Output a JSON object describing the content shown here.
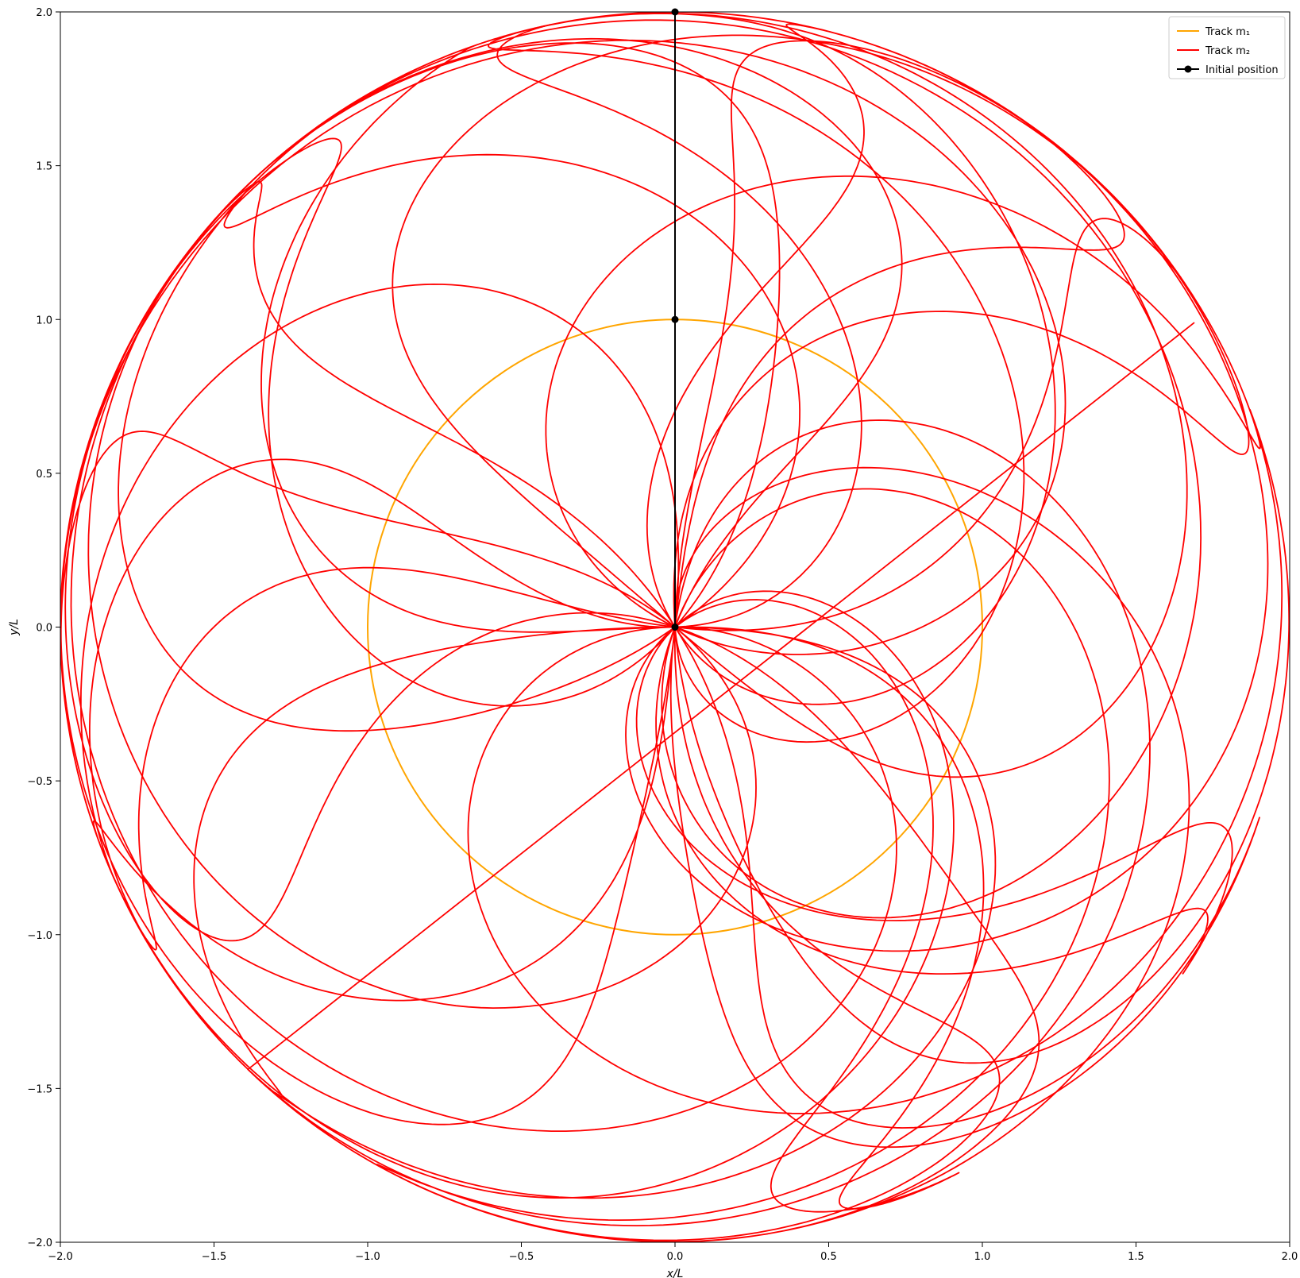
{
  "chart_data": {
    "type": "line",
    "xlabel": "x/L",
    "ylabel": "y/L",
    "xlim": [
      -2.0,
      2.0
    ],
    "ylim": [
      -2.0,
      2.0
    ],
    "xticks": [
      "−2.0",
      "−1.5",
      "−1.0",
      "−0.5",
      "0.0",
      "0.5",
      "1.0",
      "1.5",
      "2.0"
    ],
    "yticks": [
      "−2.0",
      "−1.5",
      "−1.0",
      "−0.5",
      "0.0",
      "0.5",
      "1.0",
      "1.5",
      "2.0"
    ],
    "grid": false,
    "legend_position": "top-right",
    "legend": [
      {
        "label": "Track m₁",
        "color": "#ffa500",
        "marker": "none"
      },
      {
        "label": "Track m₂",
        "color": "#ff0000",
        "marker": "none"
      },
      {
        "label": "Initial position",
        "color": "#000000",
        "marker": "circle"
      }
    ],
    "series": [
      {
        "name": "Track m₁",
        "color": "#ffa500",
        "kind": "circle",
        "center": [
          0,
          0
        ],
        "radius": 1.0
      },
      {
        "name": "Track m₂",
        "color": "#ff0000",
        "kind": "pendulum_tip",
        "L1": 1.0,
        "L2": 1.0,
        "theta1_start_deg": 0,
        "theta2_start_deg": 0,
        "petals": 23,
        "end_point": [
          1.69,
          0.99
        ]
      },
      {
        "name": "Initial position",
        "color": "#000000",
        "points": [
          [
            0.0,
            0.0
          ],
          [
            0.0,
            1.0
          ],
          [
            0.0,
            2.0
          ]
        ]
      }
    ]
  }
}
